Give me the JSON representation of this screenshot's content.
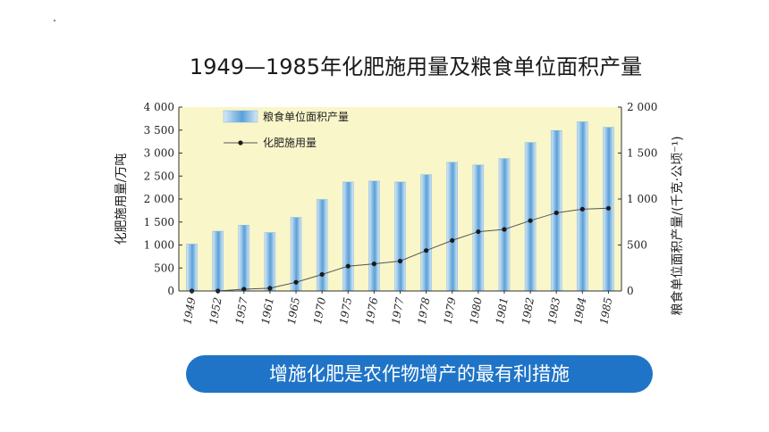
{
  "title": "1949—1985年化肥施用量及粮食单位面积产量",
  "banner_text": "增施化肥是农作物增产的最有利措施",
  "chart_data": {
    "type": "bar",
    "categories": [
      "1949",
      "1952",
      "1957",
      "1961",
      "1965",
      "1970",
      "1975",
      "1976",
      "1977",
      "1978",
      "1979",
      "1980",
      "1981",
      "1982",
      "1983",
      "1984",
      "1985"
    ],
    "series": [
      {
        "name": "粮食单位面积产量",
        "type": "bar",
        "axis": "right",
        "values": [
          510,
          650,
          715,
          635,
          800,
          995,
          1185,
          1195,
          1185,
          1265,
          1400,
          1370,
          1440,
          1615,
          1745,
          1840,
          1780
        ]
      },
      {
        "name": "化肥施用量",
        "type": "line",
        "axis": "left",
        "values": [
          0,
          0,
          40,
          60,
          190,
          360,
          540,
          590,
          650,
          880,
          1100,
          1290,
          1340,
          1530,
          1700,
          1780,
          1800
        ]
      }
    ],
    "ylabel": "化肥施用量/万吨",
    "y2label": "粮食单位面积产量/(千克·公顷⁻¹)",
    "ylim": [
      0,
      4000
    ],
    "y2lim": [
      0,
      2000
    ],
    "yticks": [
      "0",
      "500",
      "1 000",
      "1 500",
      "2 000",
      "2 500",
      "3 000",
      "3 500",
      "4 000"
    ],
    "y2ticks": [
      "0",
      "500",
      "1 000",
      "1 500",
      "2 000"
    ],
    "colors": {
      "plot_bg": "#f9f6c9",
      "bar_light": "#d7e9f7",
      "bar_dark": "#5aa0d8",
      "line": "#555555",
      "marker": "#1a1a1a"
    },
    "legend": "top-left"
  }
}
